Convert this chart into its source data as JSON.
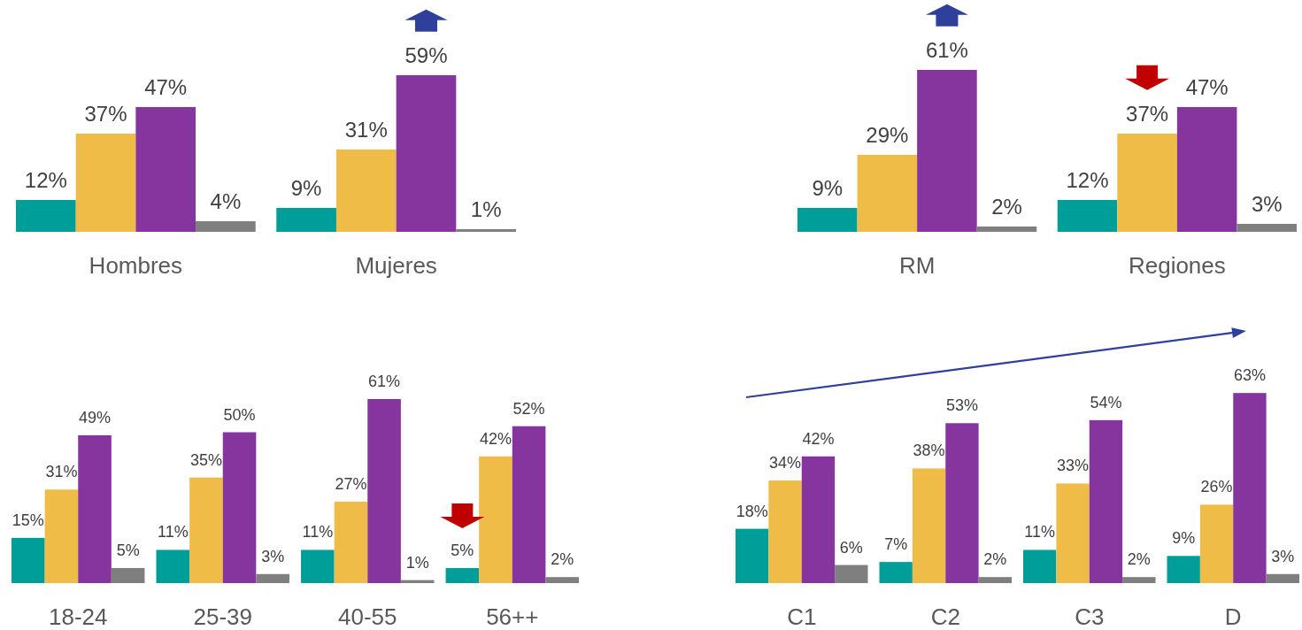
{
  "chart_data": [
    {
      "type": "bar",
      "categories": [
        "Hombres",
        "Mujeres"
      ],
      "series": [
        {
          "color": "#009e99",
          "values": [
            12,
            9
          ],
          "value_labels": [
            "12%",
            "9%"
          ]
        },
        {
          "color": "#f0bc48",
          "values": [
            37,
            31
          ],
          "value_labels": [
            "37%",
            "31%"
          ]
        },
        {
          "color": "#87359e",
          "values": [
            47,
            59
          ],
          "value_labels": [
            "47%",
            "59%"
          ]
        },
        {
          "color": "#7f7f7f",
          "values": [
            4,
            1
          ],
          "value_labels": [
            "4%",
            "1%"
          ]
        }
      ]
    },
    {
      "type": "bar",
      "categories": [
        "RM",
        "Regiones"
      ],
      "series": [
        {
          "color": "#009e99",
          "values": [
            9,
            12
          ],
          "value_labels": [
            "9%",
            "12%"
          ]
        },
        {
          "color": "#f0bc48",
          "values": [
            29,
            37
          ],
          "value_labels": [
            "29%",
            "37%"
          ]
        },
        {
          "color": "#87359e",
          "values": [
            61,
            47
          ],
          "value_labels": [
            "61%",
            "47%"
          ]
        },
        {
          "color": "#7f7f7f",
          "values": [
            2,
            3
          ],
          "value_labels": [
            "2%",
            "3%"
          ]
        }
      ]
    },
    {
      "type": "bar",
      "categories": [
        "18-24",
        "25-39",
        "40-55",
        "56++"
      ],
      "series": [
        {
          "color": "#009e99",
          "values": [
            15,
            11,
            11,
            5
          ],
          "value_labels": [
            "15%",
            "11%",
            "11%",
            "5%"
          ]
        },
        {
          "color": "#f0bc48",
          "values": [
            31,
            35,
            27,
            42
          ],
          "value_labels": [
            "31%",
            "35%",
            "27%",
            "42%"
          ]
        },
        {
          "color": "#87359e",
          "values": [
            49,
            50,
            61,
            52
          ],
          "value_labels": [
            "49%",
            "50%",
            "61%",
            "52%"
          ]
        },
        {
          "color": "#7f7f7f",
          "values": [
            5,
            3,
            1,
            2
          ],
          "value_labels": [
            "5%",
            "3%",
            "1%",
            "2%"
          ]
        }
      ]
    },
    {
      "type": "bar",
      "categories": [
        "C1",
        "C2",
        "C3",
        "D"
      ],
      "series": [
        {
          "color": "#009e99",
          "values": [
            18,
            7,
            11,
            9
          ],
          "value_labels": [
            "18%",
            "7%",
            "11%",
            "9%"
          ]
        },
        {
          "color": "#f0bc48",
          "values": [
            34,
            38,
            33,
            26
          ],
          "value_labels": [
            "34%",
            "38%",
            "33%",
            "26%"
          ]
        },
        {
          "color": "#87359e",
          "values": [
            42,
            53,
            54,
            63
          ],
          "value_labels": [
            "42%",
            "53%",
            "54%",
            "63%"
          ]
        },
        {
          "color": "#7f7f7f",
          "values": [
            6,
            2,
            2,
            3
          ],
          "value_labels": [
            "6%",
            "2%",
            "2%",
            "3%"
          ]
        }
      ]
    }
  ]
}
